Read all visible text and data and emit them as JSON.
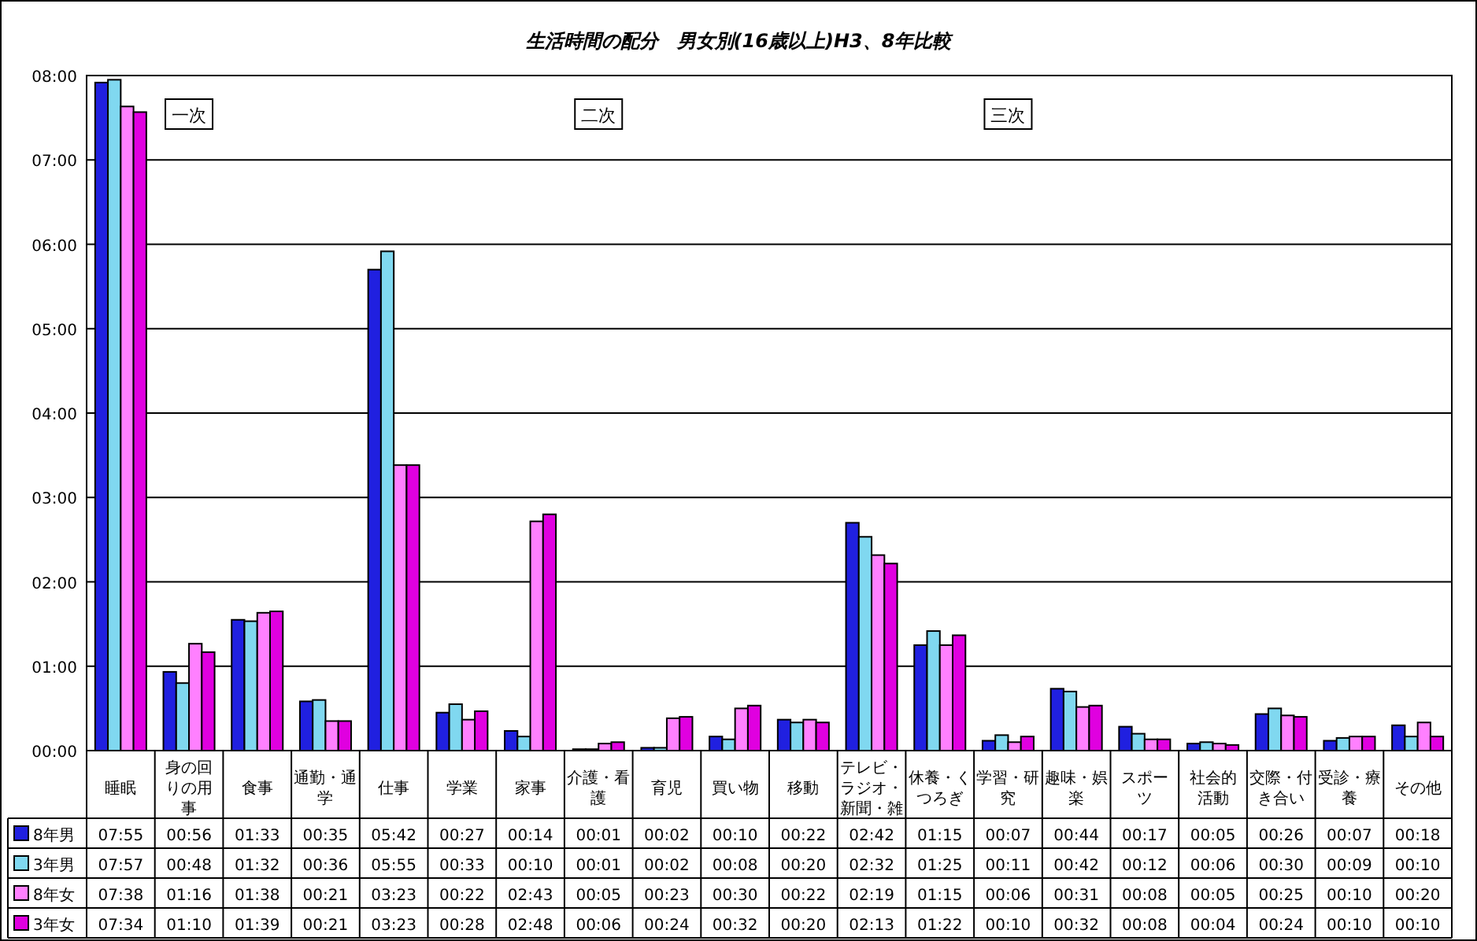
{
  "chart_data": {
    "type": "bar",
    "title": "生活時間の配分　男女別(16歳以上)H3、8年比較",
    "categories": [
      "睡眠",
      "身の回りの用事",
      "食事",
      "通勤・通学",
      "仕事",
      "学業",
      "家事",
      "介護・看護",
      "育児",
      "買い物",
      "移動",
      "テレビ・ラジオ・新聞・雑",
      "休養・くつろぎ",
      "学習・研究",
      "趣味・娯楽",
      "スポーツ",
      "社会的活動",
      "交際・付き合い",
      "受診・療養",
      "その他"
    ],
    "series": [
      {
        "name": "8年男",
        "color": "#2020e0",
        "values": [
          7.9167,
          0.9333,
          1.55,
          0.5833,
          5.7,
          0.45,
          0.2333,
          0.0167,
          0.0333,
          0.1667,
          0.3667,
          2.7,
          1.25,
          0.1167,
          0.7333,
          0.2833,
          0.0833,
          0.4333,
          0.1167,
          0.3
        ],
        "value_labels": [
          "07:55",
          "00:56",
          "01:33",
          "00:35",
          "05:42",
          "00:27",
          "00:14",
          "00:01",
          "00:02",
          "00:10",
          "00:22",
          "02:42",
          "01:15",
          "00:07",
          "00:44",
          "00:17",
          "00:05",
          "00:26",
          "00:07",
          "00:18"
        ]
      },
      {
        "name": "3年男",
        "color": "#80d8f0",
        "values": [
          7.95,
          0.8,
          1.5333,
          0.6,
          5.9167,
          0.55,
          0.1667,
          0.0167,
          0.0333,
          0.1333,
          0.3333,
          2.5333,
          1.4167,
          0.1833,
          0.7,
          0.2,
          0.1,
          0.5,
          0.15,
          0.1667
        ],
        "value_labels": [
          "07:57",
          "00:48",
          "01:32",
          "00:36",
          "05:55",
          "00:33",
          "00:10",
          "00:01",
          "00:02",
          "00:08",
          "00:20",
          "02:32",
          "01:25",
          "00:11",
          "00:42",
          "00:12",
          "00:06",
          "00:30",
          "00:09",
          "00:10"
        ]
      },
      {
        "name": "8年女",
        "color": "#ff80ff",
        "values": [
          7.6333,
          1.2667,
          1.6333,
          0.35,
          3.3833,
          0.3667,
          2.7167,
          0.0833,
          0.3833,
          0.5,
          0.3667,
          2.3167,
          1.25,
          0.1,
          0.5167,
          0.1333,
          0.0833,
          0.4167,
          0.1667,
          0.3333
        ],
        "value_labels": [
          "07:38",
          "01:16",
          "01:38",
          "00:21",
          "03:23",
          "00:22",
          "02:43",
          "00:05",
          "00:23",
          "00:30",
          "00:22",
          "02:19",
          "01:15",
          "00:06",
          "00:31",
          "00:08",
          "00:05",
          "00:25",
          "00:10",
          "00:20"
        ]
      },
      {
        "name": "3年女",
        "color": "#e000e0",
        "values": [
          7.5667,
          1.1667,
          1.65,
          0.35,
          3.3833,
          0.4667,
          2.8,
          0.1,
          0.4,
          0.5333,
          0.3333,
          2.2167,
          1.3667,
          0.1667,
          0.5333,
          0.1333,
          0.0667,
          0.4,
          0.1667,
          0.1667
        ],
        "value_labels": [
          "07:34",
          "01:10",
          "01:39",
          "00:21",
          "03:23",
          "00:28",
          "02:48",
          "00:06",
          "00:24",
          "00:32",
          "00:20",
          "02:13",
          "01:22",
          "00:10",
          "00:32",
          "00:08",
          "00:04",
          "00:24",
          "00:10",
          "00:10"
        ]
      }
    ],
    "ylim": [
      0,
      8
    ],
    "yticks": [
      {
        "value": 0,
        "label": "00:00"
      },
      {
        "value": 1,
        "label": "01:00"
      },
      {
        "value": 2,
        "label": "02:00"
      },
      {
        "value": 3,
        "label": "03:00"
      },
      {
        "value": 4,
        "label": "04:00"
      },
      {
        "value": 5,
        "label": "05:00"
      },
      {
        "value": 6,
        "label": "06:00"
      },
      {
        "value": 7,
        "label": "07:00"
      },
      {
        "value": 8,
        "label": "08:00"
      }
    ],
    "grid": "y",
    "legend": "bottom left",
    "annotations": [
      "一次",
      "二次",
      "三次"
    ]
  }
}
